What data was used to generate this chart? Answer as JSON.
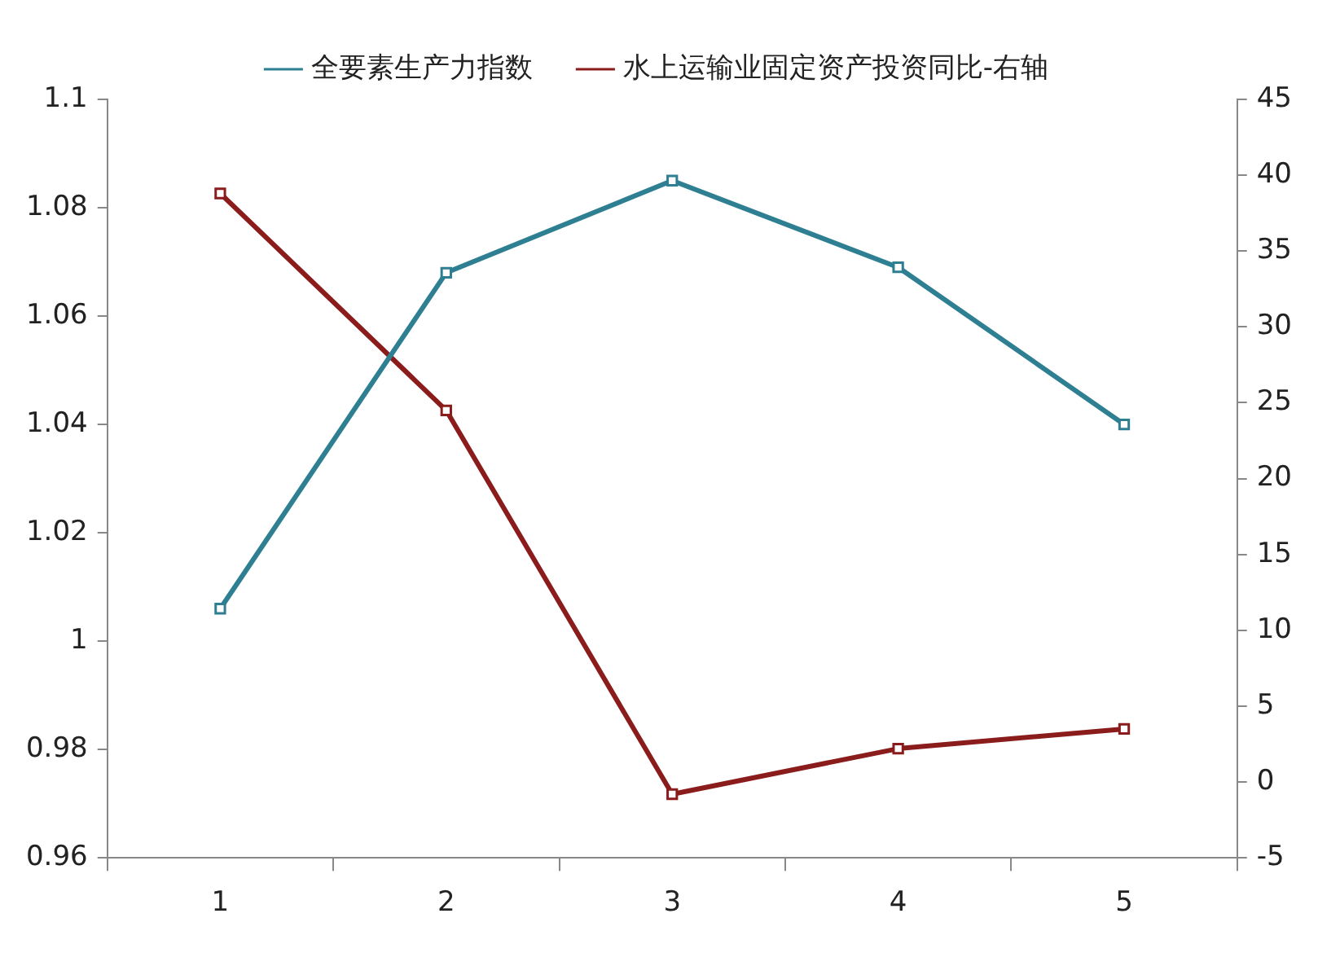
{
  "chart_data": {
    "type": "line",
    "categories": [
      "1",
      "2",
      "3",
      "4",
      "5"
    ],
    "series": [
      {
        "name": "全要素生产力指数",
        "color": "#2e7f92",
        "values": [
          1.006,
          1.068,
          1.085,
          1.069,
          1.04
        ]
      },
      {
        "name": "水上运输业固定资产投资同比-右轴",
        "color": "#8b1c1c",
        "values": [
          38.8,
          24.5,
          -0.8,
          2.2,
          3.5
        ],
        "axis": "y2"
      }
    ],
    "ylim": [
      0.96,
      1.1
    ],
    "yticks": [
      {
        "value": 0.96,
        "label": "0.96"
      },
      {
        "value": 0.98,
        "label": "0.98"
      },
      1,
      {
        "value": 1.02,
        "label": "1.02"
      },
      {
        "value": 1.04,
        "label": "1.04"
      },
      {
        "value": 1.06,
        "label": "1.06"
      },
      {
        "value": 1.08,
        "label": "1.08"
      },
      {
        "value": 1.1,
        "label": "1.1"
      }
    ],
    "y2lim": [
      -5,
      45
    ],
    "y2ticks": [
      -5,
      0,
      5,
      10,
      15,
      20,
      25,
      30,
      35,
      40,
      45
    ],
    "grid": false,
    "legend": "top",
    "marker": "square",
    "line_style": "solid"
  }
}
